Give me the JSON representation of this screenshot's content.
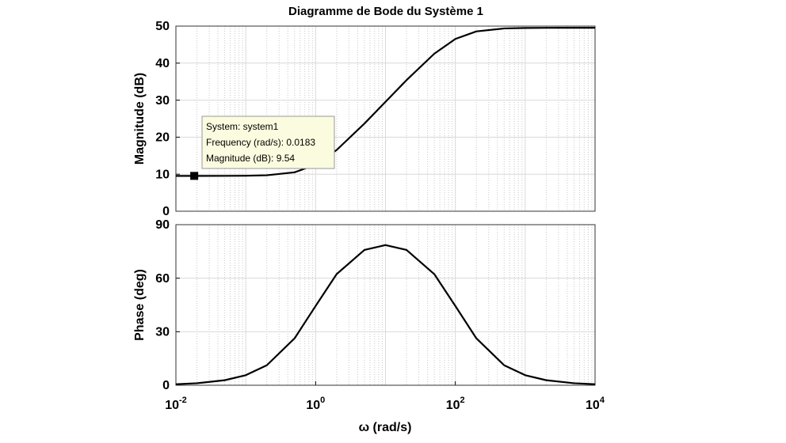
{
  "chart_data": [
    {
      "type": "line",
      "title": "Diagramme de Bode du Système 1",
      "ylabel": "Magnitude (dB)",
      "x": [
        0.01,
        0.02,
        0.05,
        0.1,
        0.2,
        0.5,
        1,
        2,
        5,
        10,
        20,
        50,
        100,
        200,
        500,
        1000,
        2000,
        5000,
        10000
      ],
      "values": [
        9.54,
        9.54,
        9.55,
        9.58,
        9.71,
        10.51,
        12.55,
        16.53,
        23.68,
        29.54,
        35.4,
        42.55,
        46.53,
        48.57,
        49.37,
        49.5,
        49.53,
        49.54,
        49.54
      ],
      "color": "#000000",
      "xscale": "log",
      "grid": true,
      "xlim": [
        0.01,
        10000
      ],
      "ylim": [
        0,
        50
      ],
      "yticks": [
        0,
        10,
        20,
        30,
        40,
        50
      ],
      "datatip": {
        "lines": [
          "System: system1",
          "Frequency (rad/s): 0.0183",
          "Magnitude (dB): 9.54"
        ],
        "x": 0.0183,
        "y": 9.54
      }
    },
    {
      "type": "line",
      "ylabel": "Phase (deg)",
      "xlabel": "ω (rad/s)",
      "x": [
        0.01,
        0.02,
        0.05,
        0.1,
        0.2,
        0.5,
        1,
        2,
        5,
        10,
        20,
        50,
        100,
        200,
        500,
        1000,
        2000,
        5000,
        10000
      ],
      "values": [
        0.57,
        1.13,
        2.83,
        5.65,
        11.2,
        26.28,
        44.43,
        62.29,
        75.83,
        78.58,
        75.83,
        62.28,
        44.43,
        26.28,
        11.2,
        5.65,
        2.83,
        1.14,
        0.57
      ],
      "color": "#000000",
      "xscale": "log",
      "grid": true,
      "xlim": [
        0.01,
        10000
      ],
      "ylim": [
        0,
        90
      ],
      "yticks": [
        0,
        30,
        60,
        90
      ],
      "xticks": [
        {
          "value": 0.01,
          "label": "10^-2"
        },
        {
          "value": 1,
          "label": "10^0"
        },
        {
          "value": 100,
          "label": "10^2"
        },
        {
          "value": 10000,
          "label": "10^4"
        }
      ]
    }
  ]
}
